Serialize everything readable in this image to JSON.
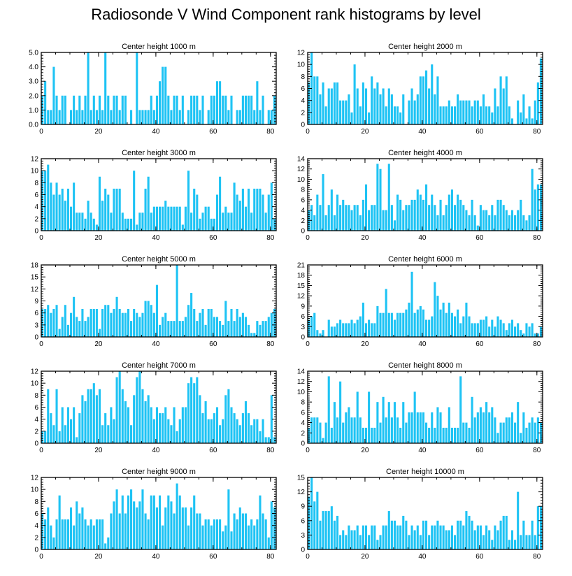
{
  "title": "Radiosonde V Wind Component rank histograms by level",
  "colors": {
    "bar": "#1ec3f4",
    "axis": "#000000",
    "background": "#ffffff"
  },
  "chart_data": [
    {
      "type": "bar",
      "title": "Center height 1000 m",
      "xlim": [
        0,
        82
      ],
      "ylim": [
        0,
        5
      ],
      "xticks": [
        0,
        20,
        40,
        60,
        80
      ],
      "yticks": [
        0,
        1,
        2,
        3,
        4,
        5
      ],
      "ytick_labels": [
        "0.0",
        "1.0",
        "2.0",
        "3.0",
        "4.0",
        "5.0"
      ],
      "values": [
        2,
        3,
        1,
        1,
        4,
        2,
        1,
        2,
        2,
        0,
        1,
        2,
        1,
        2,
        1,
        2,
        5,
        1,
        2,
        1,
        2,
        1,
        5,
        2,
        1,
        2,
        2,
        1,
        2,
        2,
        0,
        1,
        0,
        5,
        1,
        1,
        1,
        1,
        2,
        1,
        2,
        3,
        4,
        4,
        2,
        1,
        2,
        2,
        1,
        2,
        0,
        1,
        2,
        2,
        2,
        1,
        2,
        0,
        1,
        2,
        2,
        3,
        3,
        2,
        2,
        1,
        2,
        0,
        1,
        1,
        2,
        2,
        2,
        2,
        1,
        3,
        1,
        2,
        0,
        1,
        1,
        2
      ]
    },
    {
      "type": "bar",
      "title": "Center height 2000 m",
      "xlim": [
        0,
        82
      ],
      "ylim": [
        0,
        12
      ],
      "xticks": [
        0,
        20,
        40,
        60,
        80
      ],
      "yticks": [
        0,
        2,
        4,
        6,
        8,
        10,
        12
      ],
      "ytick_labels": [
        "0",
        "2",
        "4",
        "6",
        "8",
        "10",
        "12"
      ],
      "values": [
        7,
        12,
        8,
        8,
        5,
        7,
        3,
        6,
        6,
        7,
        7,
        4,
        4,
        4,
        5,
        2,
        10,
        6,
        3,
        7,
        6,
        2,
        8,
        6,
        7,
        5,
        6,
        3,
        6,
        5,
        3,
        3,
        2,
        5,
        0,
        4,
        6,
        4,
        5,
        8,
        8,
        9,
        6,
        10,
        5,
        8,
        3,
        3,
        3,
        4,
        3,
        3,
        5,
        4,
        4,
        4,
        4,
        3,
        4,
        4,
        3,
        5,
        3,
        3,
        2,
        6,
        3,
        8,
        6,
        8,
        3,
        1,
        0,
        4,
        2,
        5,
        1,
        3,
        1,
        4,
        7,
        11
      ]
    },
    {
      "type": "bar",
      "title": "Center height 3000 m",
      "xlim": [
        0,
        82
      ],
      "ylim": [
        0,
        12
      ],
      "xticks": [
        0,
        20,
        40,
        60,
        80
      ],
      "yticks": [
        0,
        2,
        4,
        6,
        8,
        10,
        12
      ],
      "ytick_labels": [
        "0",
        "2",
        "4",
        "6",
        "8",
        "10",
        "12"
      ],
      "values": [
        10,
        10,
        11,
        8,
        6,
        8,
        6,
        7,
        5,
        7,
        4,
        8,
        3,
        3,
        3,
        2,
        5,
        3,
        2,
        1,
        9,
        5,
        7,
        6,
        3,
        7,
        7,
        7,
        3,
        2,
        2,
        2,
        10,
        1,
        3,
        3,
        7,
        9,
        3,
        4,
        4,
        4,
        4,
        5,
        4,
        4,
        4,
        4,
        4,
        1,
        4,
        10,
        3,
        7,
        6,
        2,
        3,
        4,
        4,
        2,
        2,
        6,
        9,
        3,
        4,
        3,
        3,
        8,
        6,
        5,
        7,
        4,
        7,
        3,
        7,
        7,
        7,
        6,
        3,
        6,
        8,
        2
      ]
    },
    {
      "type": "bar",
      "title": "Center height 4000 m",
      "xlim": [
        0,
        82
      ],
      "ylim": [
        0,
        14
      ],
      "xticks": [
        0,
        20,
        40,
        60,
        80
      ],
      "yticks": [
        0,
        2,
        4,
        6,
        8,
        10,
        12,
        14
      ],
      "ytick_labels": [
        "0",
        "2",
        "4",
        "6",
        "8",
        "10",
        "12",
        "14"
      ],
      "values": [
        4,
        5,
        3,
        7,
        5,
        11,
        3,
        5,
        8,
        3,
        7,
        5,
        6,
        5,
        5,
        4,
        5,
        5,
        3,
        6,
        9,
        4,
        5,
        5,
        13,
        12,
        4,
        4,
        13,
        5,
        2,
        7,
        6,
        4,
        5,
        5,
        6,
        6,
        8,
        7,
        6,
        9,
        5,
        7,
        5,
        3,
        6,
        3,
        5,
        7,
        8,
        5,
        7,
        6,
        5,
        4,
        3,
        6,
        3,
        1,
        5,
        4,
        4,
        3,
        5,
        3,
        6,
        6,
        5,
        4,
        3,
        4,
        3,
        4,
        6,
        3,
        2,
        3,
        12,
        8,
        9,
        9
      ]
    },
    {
      "type": "bar",
      "title": "Center height 5000 m",
      "xlim": [
        0,
        82
      ],
      "ylim": [
        0,
        18
      ],
      "xticks": [
        0,
        20,
        40,
        60,
        80
      ],
      "yticks": [
        0,
        3,
        6,
        9,
        12,
        15,
        18
      ],
      "ytick_labels": [
        "0",
        "3",
        "6",
        "9",
        "12",
        "15",
        "18"
      ],
      "values": [
        7,
        7,
        8,
        6,
        7,
        8,
        2,
        5,
        8,
        3,
        6,
        10,
        5,
        4,
        7,
        4,
        5,
        7,
        7,
        7,
        2,
        7,
        8,
        8,
        6,
        7,
        10,
        7,
        6,
        6,
        7,
        4,
        7,
        6,
        5,
        6,
        9,
        9,
        8,
        6,
        13,
        3,
        5,
        6,
        4,
        4,
        4,
        18,
        4,
        4,
        5,
        8,
        11,
        7,
        4,
        6,
        7,
        3,
        7,
        7,
        5,
        5,
        4,
        3,
        9,
        4,
        7,
        4,
        7,
        5,
        6,
        5,
        3,
        1,
        1,
        4,
        3,
        4,
        4,
        5,
        6,
        7
      ]
    },
    {
      "type": "bar",
      "title": "Center height 6000 m",
      "xlim": [
        0,
        82
      ],
      "ylim": [
        0,
        21
      ],
      "xticks": [
        0,
        20,
        40,
        60,
        80
      ],
      "yticks": [
        0,
        3,
        6,
        9,
        12,
        15,
        18,
        21
      ],
      "ytick_labels": [
        "0",
        "3",
        "6",
        "9",
        "12",
        "15",
        "18",
        "21"
      ],
      "values": [
        5,
        6,
        7,
        2,
        1,
        2,
        0,
        5,
        3,
        3,
        4,
        5,
        4,
        4,
        4,
        5,
        4,
        5,
        6,
        10,
        4,
        5,
        4,
        4,
        9,
        7,
        7,
        14,
        7,
        7,
        5,
        7,
        7,
        7,
        8,
        10,
        19,
        7,
        8,
        9,
        8,
        5,
        5,
        6,
        16,
        12,
        8,
        10,
        7,
        10,
        7,
        6,
        8,
        4,
        6,
        10,
        6,
        4,
        4,
        4,
        5,
        5,
        6,
        3,
        5,
        3,
        6,
        5,
        4,
        2,
        4,
        5,
        3,
        4,
        2,
        1,
        4,
        3,
        4,
        1,
        1,
        3
      ]
    },
    {
      "type": "bar",
      "title": "Center height 7000 m",
      "xlim": [
        0,
        82
      ],
      "ylim": [
        0,
        12
      ],
      "xticks": [
        0,
        20,
        40,
        60,
        80
      ],
      "yticks": [
        0,
        2,
        4,
        6,
        8,
        10,
        12
      ],
      "ytick_labels": [
        "0",
        "2",
        "4",
        "6",
        "8",
        "10",
        "12"
      ],
      "values": [
        2,
        2,
        9,
        5,
        3,
        9,
        2,
        6,
        3,
        6,
        4,
        6,
        1,
        5,
        8,
        7,
        9,
        9,
        10,
        8,
        9,
        3,
        5,
        3,
        6,
        4,
        11,
        12,
        9,
        7,
        6,
        3,
        8,
        11,
        12,
        9,
        7,
        8,
        6,
        4,
        6,
        5,
        5,
        6,
        4,
        3,
        6,
        2,
        4,
        6,
        6,
        10,
        11,
        10,
        11,
        8,
        5,
        7,
        4,
        4,
        5,
        6,
        3,
        4,
        8,
        9,
        6,
        5,
        4,
        3,
        5,
        7,
        5,
        3,
        4,
        4,
        2,
        4,
        1,
        1,
        8,
        1
      ]
    },
    {
      "type": "bar",
      "title": "Center height 8000 m",
      "xlim": [
        0,
        82
      ],
      "ylim": [
        0,
        14
      ],
      "xticks": [
        0,
        20,
        40,
        60,
        80
      ],
      "yticks": [
        0,
        2,
        4,
        6,
        8,
        10,
        12,
        14
      ],
      "ytick_labels": [
        "0",
        "2",
        "4",
        "6",
        "8",
        "10",
        "12",
        "14"
      ],
      "values": [
        3,
        5,
        5,
        5,
        4,
        1,
        4,
        13,
        3,
        8,
        5,
        12,
        4,
        6,
        7,
        5,
        5,
        10,
        5,
        3,
        3,
        10,
        3,
        3,
        8,
        4,
        9,
        5,
        8,
        5,
        8,
        5,
        3,
        8,
        4,
        6,
        6,
        10,
        6,
        6,
        6,
        4,
        3,
        6,
        3,
        7,
        6,
        3,
        3,
        7,
        3,
        3,
        3,
        13,
        4,
        4,
        3,
        9,
        5,
        6,
        7,
        6,
        8,
        6,
        7,
        5,
        2,
        4,
        4,
        5,
        5,
        6,
        4,
        8,
        2,
        6,
        3,
        4,
        5,
        4,
        5,
        4
      ]
    },
    {
      "type": "bar",
      "title": "Center height 9000 m",
      "xlim": [
        0,
        82
      ],
      "ylim": [
        0,
        12
      ],
      "xticks": [
        0,
        20,
        40,
        60,
        80
      ],
      "yticks": [
        0,
        2,
        4,
        6,
        8,
        10,
        12
      ],
      "ytick_labels": [
        "0",
        "2",
        "4",
        "6",
        "8",
        "10",
        "12"
      ],
      "values": [
        6,
        5,
        7,
        4,
        2,
        5,
        9,
        5,
        5,
        5,
        7,
        4,
        8,
        6,
        7,
        5,
        4,
        5,
        4,
        5,
        5,
        5,
        1,
        2,
        6,
        8,
        10,
        6,
        9,
        6,
        9,
        10,
        8,
        7,
        8,
        10,
        6,
        5,
        9,
        9,
        7,
        9,
        4,
        7,
        9,
        8,
        6,
        11,
        9,
        7,
        7,
        4,
        7,
        9,
        6,
        6,
        4,
        5,
        5,
        4,
        5,
        5,
        5,
        3,
        4,
        10,
        3,
        6,
        5,
        7,
        6,
        6,
        4,
        5,
        4,
        5,
        9,
        6,
        5,
        2,
        8,
        7
      ]
    },
    {
      "type": "bar",
      "title": "Center height 10000 m",
      "xlim": [
        0,
        82
      ],
      "ylim": [
        0,
        15
      ],
      "xticks": [
        0,
        20,
        40,
        60,
        80
      ],
      "yticks": [
        0,
        3,
        6,
        9,
        12,
        15
      ],
      "ytick_labels": [
        "0",
        "3",
        "6",
        "9",
        "12",
        "15"
      ],
      "values": [
        11,
        15,
        10,
        12,
        6,
        8,
        8,
        8,
        9,
        6,
        7,
        3,
        4,
        3,
        5,
        4,
        4,
        5,
        3,
        5,
        5,
        3,
        5,
        5,
        2,
        3,
        5,
        5,
        8,
        6,
        6,
        5,
        5,
        7,
        6,
        3,
        5,
        4,
        5,
        3,
        6,
        6,
        3,
        5,
        5,
        6,
        5,
        5,
        4,
        4,
        5,
        3,
        6,
        6,
        5,
        8,
        7,
        6,
        4,
        5,
        5,
        3,
        5,
        4,
        2,
        5,
        4,
        6,
        7,
        7,
        2,
        4,
        2,
        12,
        3,
        6,
        3,
        3,
        6,
        3,
        9,
        9
      ]
    }
  ]
}
